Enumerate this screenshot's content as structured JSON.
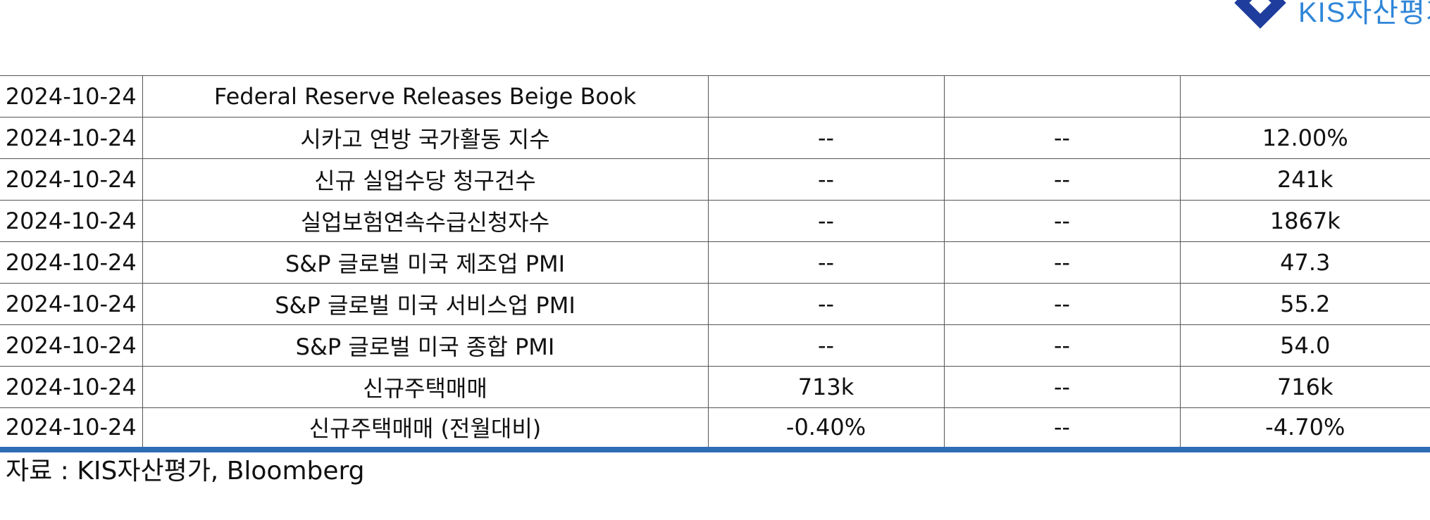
{
  "logo": {
    "text": "KIS자산평가",
    "brand_color": "#2f86d8",
    "mark_color": "#1e3d9c"
  },
  "table": {
    "border_accent_color": "#2e6db4",
    "rows": [
      [
        "2024-10-24",
        "Federal Reserve Releases Beige Book",
        "",
        "",
        ""
      ],
      [
        "2024-10-24",
        "시카고 연방 국가활동 지수",
        "--",
        "--",
        "12.00%"
      ],
      [
        "2024-10-24",
        "신규 실업수당 청구건수",
        "--",
        "--",
        "241k"
      ],
      [
        "2024-10-24",
        "실업보험연속수급신청자수",
        "--",
        "--",
        "1867k"
      ],
      [
        "2024-10-24",
        "S&P 글로벌 미국 제조업 PMI",
        "--",
        "--",
        "47.3"
      ],
      [
        "2024-10-24",
        "S&P 글로벌 미국 서비스업 PMI",
        "--",
        "--",
        "55.2"
      ],
      [
        "2024-10-24",
        "S&P 글로벌 미국 종합 PMI",
        "--",
        "--",
        "54.0"
      ],
      [
        "2024-10-24",
        "신규주택매매",
        "713k",
        "--",
        "716k"
      ],
      [
        "2024-10-24",
        "신규주택매매 (전월대비)",
        "-0.40%",
        "--",
        "-4.70%"
      ]
    ]
  },
  "footer": {
    "source": "자료 : KIS자산평가, Bloomberg"
  }
}
